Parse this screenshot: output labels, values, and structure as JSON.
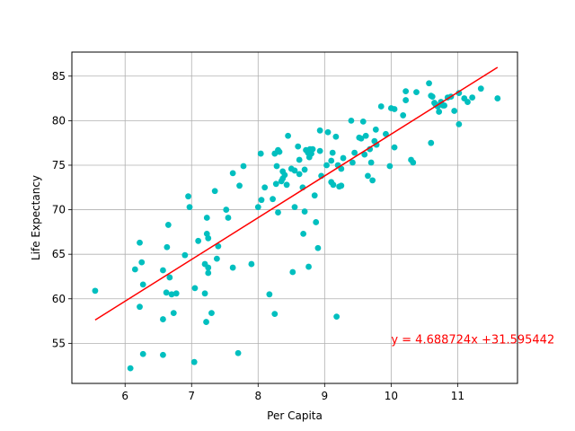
{
  "chart_data": {
    "type": "scatter",
    "xlabel": "Per Capita",
    "ylabel": "Life Expectancy",
    "xlim": [
      5.2,
      11.9
    ],
    "ylim": [
      50.5,
      87.7
    ],
    "xticks": [
      6,
      7,
      8,
      9,
      10,
      11
    ],
    "yticks": [
      55,
      60,
      65,
      70,
      75,
      80,
      85
    ],
    "grid": true,
    "point_color": "#00bfbf",
    "regression": {
      "slope": 4.688724,
      "intercept": 31.595442,
      "x_range": [
        5.55,
        11.6
      ],
      "color": "#ff0000",
      "label": "y = 4.688724x +31.595442",
      "label_at": [
        10.0,
        55.0
      ]
    },
    "series": [
      {
        "points": [
          [
            5.55,
            60.9
          ],
          [
            6.08,
            52.2
          ],
          [
            6.15,
            63.3
          ],
          [
            6.22,
            66.3
          ],
          [
            6.22,
            59.1
          ],
          [
            6.25,
            64.1
          ],
          [
            6.27,
            61.6
          ],
          [
            6.27,
            53.8
          ],
          [
            6.57,
            63.2
          ],
          [
            6.57,
            57.7
          ],
          [
            6.57,
            53.7
          ],
          [
            6.62,
            60.7
          ],
          [
            6.63,
            65.8
          ],
          [
            6.65,
            68.3
          ],
          [
            6.67,
            62.4
          ],
          [
            6.7,
            60.5
          ],
          [
            6.73,
            58.4
          ],
          [
            6.77,
            60.6
          ],
          [
            6.9,
            64.9
          ],
          [
            6.95,
            71.5
          ],
          [
            6.97,
            70.3
          ],
          [
            7.04,
            52.9
          ],
          [
            7.05,
            61.2
          ],
          [
            7.1,
            66.5
          ],
          [
            7.2,
            63.9
          ],
          [
            7.2,
            60.6
          ],
          [
            7.22,
            57.4
          ],
          [
            7.23,
            69.1
          ],
          [
            7.23,
            67.3
          ],
          [
            7.25,
            66.8
          ],
          [
            7.25,
            63.5
          ],
          [
            7.25,
            62.9
          ],
          [
            7.3,
            58.4
          ],
          [
            7.35,
            72.1
          ],
          [
            7.38,
            64.5
          ],
          [
            7.4,
            65.9
          ],
          [
            7.52,
            70.0
          ],
          [
            7.55,
            69.1
          ],
          [
            7.62,
            74.1
          ],
          [
            7.62,
            63.5
          ],
          [
            7.7,
            53.9
          ],
          [
            7.72,
            72.7
          ],
          [
            7.78,
            74.9
          ],
          [
            7.9,
            63.9
          ],
          [
            8.0,
            70.3
          ],
          [
            8.04,
            76.3
          ],
          [
            8.05,
            71.1
          ],
          [
            8.1,
            72.5
          ],
          [
            8.17,
            60.5
          ],
          [
            8.22,
            71.2
          ],
          [
            8.25,
            76.3
          ],
          [
            8.25,
            58.3
          ],
          [
            8.27,
            72.9
          ],
          [
            8.28,
            74.9
          ],
          [
            8.3,
            69.7
          ],
          [
            8.3,
            76.7
          ],
          [
            8.32,
            76.5
          ],
          [
            8.35,
            73.2
          ],
          [
            8.37,
            74.3
          ],
          [
            8.37,
            73.5
          ],
          [
            8.4,
            73.9
          ],
          [
            8.43,
            72.8
          ],
          [
            8.45,
            78.3
          ],
          [
            8.5,
            74.6
          ],
          [
            8.52,
            63.0
          ],
          [
            8.55,
            74.4
          ],
          [
            8.55,
            70.3
          ],
          [
            8.6,
            77.1
          ],
          [
            8.62,
            75.6
          ],
          [
            8.62,
            74.0
          ],
          [
            8.67,
            72.5
          ],
          [
            8.68,
            67.3
          ],
          [
            8.7,
            69.8
          ],
          [
            8.7,
            74.5
          ],
          [
            8.72,
            76.7
          ],
          [
            8.75,
            76.4
          ],
          [
            8.76,
            63.6
          ],
          [
            8.77,
            75.9
          ],
          [
            8.78,
            76.8
          ],
          [
            8.8,
            76.3
          ],
          [
            8.82,
            76.8
          ],
          [
            8.85,
            71.6
          ],
          [
            8.87,
            68.6
          ],
          [
            8.9,
            65.7
          ],
          [
            8.93,
            78.9
          ],
          [
            8.93,
            76.6
          ],
          [
            8.95,
            73.8
          ],
          [
            9.03,
            75.0
          ],
          [
            9.05,
            78.7
          ],
          [
            9.1,
            75.5
          ],
          [
            9.1,
            73.1
          ],
          [
            9.12,
            76.4
          ],
          [
            9.13,
            72.8
          ],
          [
            9.17,
            78.2
          ],
          [
            9.18,
            58.0
          ],
          [
            9.2,
            75.0
          ],
          [
            9.22,
            72.6
          ],
          [
            9.25,
            72.7
          ],
          [
            9.25,
            74.6
          ],
          [
            9.28,
            75.8
          ],
          [
            9.4,
            80.0
          ],
          [
            9.42,
            75.3
          ],
          [
            9.45,
            76.4
          ],
          [
            9.52,
            78.1
          ],
          [
            9.55,
            78.0
          ],
          [
            9.58,
            79.9
          ],
          [
            9.6,
            76.2
          ],
          [
            9.62,
            78.3
          ],
          [
            9.65,
            73.8
          ],
          [
            9.68,
            76.8
          ],
          [
            9.7,
            75.3
          ],
          [
            9.72,
            73.3
          ],
          [
            9.75,
            77.7
          ],
          [
            9.77,
            79.0
          ],
          [
            9.78,
            77.3
          ],
          [
            9.85,
            81.6
          ],
          [
            9.92,
            78.5
          ],
          [
            9.98,
            74.9
          ],
          [
            10.0,
            81.4
          ],
          [
            10.05,
            81.3
          ],
          [
            10.05,
            77.0
          ],
          [
            10.18,
            80.6
          ],
          [
            10.22,
            83.3
          ],
          [
            10.22,
            82.3
          ],
          [
            10.3,
            75.6
          ],
          [
            10.33,
            75.3
          ],
          [
            10.38,
            83.2
          ],
          [
            10.57,
            84.2
          ],
          [
            10.6,
            82.8
          ],
          [
            10.6,
            77.5
          ],
          [
            10.62,
            82.7
          ],
          [
            10.65,
            82.0
          ],
          [
            10.67,
            81.8
          ],
          [
            10.7,
            81.6
          ],
          [
            10.72,
            81.0
          ],
          [
            10.75,
            82.1
          ],
          [
            10.78,
            81.7
          ],
          [
            10.8,
            81.7
          ],
          [
            10.85,
            82.6
          ],
          [
            10.9,
            82.7
          ],
          [
            10.95,
            81.1
          ],
          [
            11.02,
            83.1
          ],
          [
            11.02,
            79.6
          ],
          [
            11.1,
            82.5
          ],
          [
            11.15,
            82.1
          ],
          [
            11.22,
            82.6
          ],
          [
            11.35,
            83.6
          ],
          [
            11.6,
            82.5
          ]
        ]
      }
    ]
  }
}
